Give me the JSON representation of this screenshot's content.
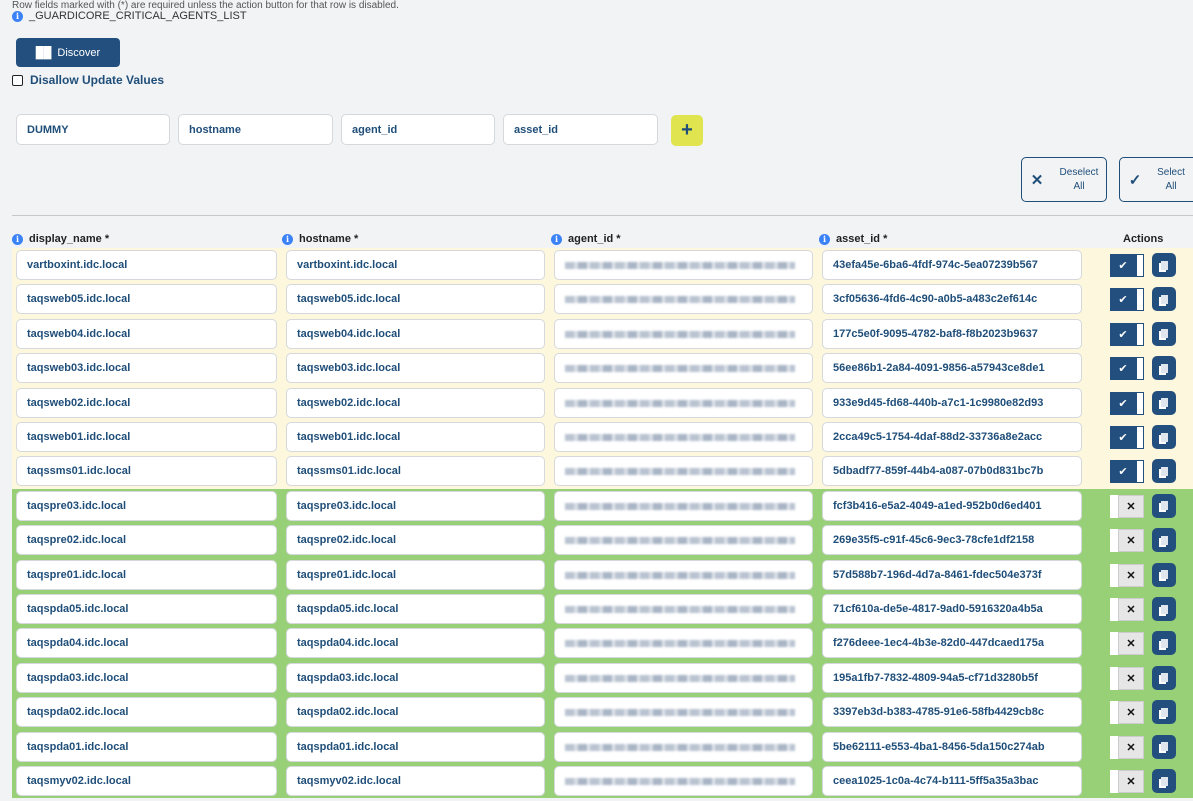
{
  "note": "Row fields marked with (*) are required unless the action button for that row is disabled.",
  "list_name": "_GUARDICORE_CRITICAL_AGENTS_LIST",
  "discover_label": "Discover",
  "disallow_label": "Disallow Update Values",
  "disallow_checked": false,
  "new_row": {
    "display_name": "DUMMY",
    "hostname": "hostname",
    "agent_id": "agent_id",
    "asset_id": "asset_id"
  },
  "add_label": "+",
  "deselect_all": {
    "line1": "Deselect",
    "line2": "All"
  },
  "select_all": {
    "line1": "Select",
    "line2": "All"
  },
  "columns": [
    "display_name *",
    "hostname *",
    "agent_id *",
    "asset_id *",
    "Actions"
  ],
  "colors": {
    "enabled_row": "#fdf7de",
    "disabled_row": "#98d077",
    "primary": "#234f7e",
    "add": "#dfe44f"
  },
  "rows": [
    {
      "display_name": "vartboxint.idc.local",
      "hostname": "vartboxint.idc.local",
      "asset_id": "43efa45e-6ba6-4fdf-974c-5ea07239b567",
      "enabled": true
    },
    {
      "display_name": "taqsweb05.idc.local",
      "hostname": "taqsweb05.idc.local",
      "asset_id": "3cf05636-4fd6-4c90-a0b5-a483c2ef614c",
      "enabled": true
    },
    {
      "display_name": "taqsweb04.idc.local",
      "hostname": "taqsweb04.idc.local",
      "asset_id": "177c5e0f-9095-4782-baf8-f8b2023b9637",
      "enabled": true
    },
    {
      "display_name": "taqsweb03.idc.local",
      "hostname": "taqsweb03.idc.local",
      "asset_id": "56ee86b1-2a84-4091-9856-a57943ce8de1",
      "enabled": true
    },
    {
      "display_name": "taqsweb02.idc.local",
      "hostname": "taqsweb02.idc.local",
      "asset_id": "933e9d45-fd68-440b-a7c1-1c9980e82d93",
      "enabled": true
    },
    {
      "display_name": "taqsweb01.idc.local",
      "hostname": "taqsweb01.idc.local",
      "asset_id": "2cca49c5-1754-4daf-88d2-33736a8e2acc",
      "enabled": true
    },
    {
      "display_name": "taqssms01.idc.local",
      "hostname": "taqssms01.idc.local",
      "asset_id": "5dbadf77-859f-44b4-a087-07b0d831bc7b",
      "enabled": true
    },
    {
      "display_name": "taqspre03.idc.local",
      "hostname": "taqspre03.idc.local",
      "asset_id": "fcf3b416-e5a2-4049-a1ed-952b0d6ed401",
      "enabled": false
    },
    {
      "display_name": "taqspre02.idc.local",
      "hostname": "taqspre02.idc.local",
      "asset_id": "269e35f5-c91f-45c6-9ec3-78cfe1df2158",
      "enabled": false
    },
    {
      "display_name": "taqspre01.idc.local",
      "hostname": "taqspre01.idc.local",
      "asset_id": "57d588b7-196d-4d7a-8461-fdec504e373f",
      "enabled": false
    },
    {
      "display_name": "taqspda05.idc.local",
      "hostname": "taqspda05.idc.local",
      "asset_id": "71cf610a-de5e-4817-9ad0-5916320a4b5a",
      "enabled": false
    },
    {
      "display_name": "taqspda04.idc.local",
      "hostname": "taqspda04.idc.local",
      "asset_id": "f276deee-1ec4-4b3e-82d0-447dcaed175a",
      "enabled": false
    },
    {
      "display_name": "taqspda03.idc.local",
      "hostname": "taqspda03.idc.local",
      "asset_id": "195a1fb7-7832-4809-94a5-cf71d3280b5f",
      "enabled": false
    },
    {
      "display_name": "taqspda02.idc.local",
      "hostname": "taqspda02.idc.local",
      "asset_id": "3397eb3d-b383-4785-91e6-58fb4429cb8c",
      "enabled": false
    },
    {
      "display_name": "taqspda01.idc.local",
      "hostname": "taqspda01.idc.local",
      "asset_id": "5be62111-e553-4ba1-8456-5da150c274ab",
      "enabled": false
    },
    {
      "display_name": "taqsmyv02.idc.local",
      "hostname": "taqsmyv02.idc.local",
      "asset_id": "ceea1025-1c0a-4c74-b111-5ff5a35a3bac",
      "enabled": false
    }
  ]
}
